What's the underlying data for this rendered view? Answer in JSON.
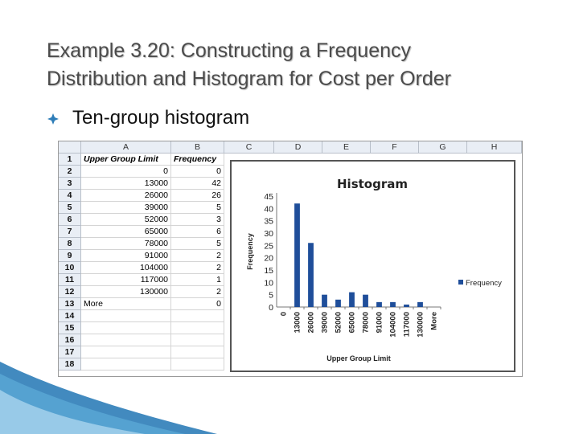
{
  "slide": {
    "title_line1": "Example 3.20: Constructing a Frequency",
    "title_line2": "Distribution and Histogram for Cost per Order",
    "bullet": "Ten-group histogram"
  },
  "sheet": {
    "column_headers": [
      "A",
      "B",
      "C",
      "D",
      "E",
      "F",
      "G",
      "H"
    ],
    "header_row": [
      "Upper Group Limit",
      "Frequency"
    ],
    "rows": [
      {
        "num": "2",
        "a": "0",
        "b": "0"
      },
      {
        "num": "3",
        "a": "13000",
        "b": "42"
      },
      {
        "num": "4",
        "a": "26000",
        "b": "26"
      },
      {
        "num": "5",
        "a": "39000",
        "b": "5"
      },
      {
        "num": "6",
        "a": "52000",
        "b": "3"
      },
      {
        "num": "7",
        "a": "65000",
        "b": "6"
      },
      {
        "num": "8",
        "a": "78000",
        "b": "5"
      },
      {
        "num": "9",
        "a": "91000",
        "b": "2"
      },
      {
        "num": "10",
        "a": "104000",
        "b": "2"
      },
      {
        "num": "11",
        "a": "117000",
        "b": "1"
      },
      {
        "num": "12",
        "a": "130000",
        "b": "2"
      },
      {
        "num": "13",
        "a": "More",
        "b": "0"
      },
      {
        "num": "14",
        "a": "",
        "b": ""
      },
      {
        "num": "15",
        "a": "",
        "b": ""
      },
      {
        "num": "16",
        "a": "",
        "b": ""
      },
      {
        "num": "17",
        "a": "",
        "b": ""
      },
      {
        "num": "18",
        "a": "",
        "b": ""
      }
    ],
    "first_row_num": "1"
  },
  "chart_data": {
    "type": "bar",
    "title": "Histogram",
    "xlabel": "Upper Group Limit",
    "ylabel": "Frequency",
    "categories": [
      "0",
      "13000",
      "26000",
      "39000",
      "52000",
      "65000",
      "78000",
      "91000",
      "104000",
      "117000",
      "130000",
      "More"
    ],
    "series": [
      {
        "name": "Frequency",
        "values": [
          0,
          42,
          26,
          5,
          3,
          6,
          5,
          2,
          2,
          1,
          2,
          0
        ]
      }
    ],
    "ylim": [
      0,
      45
    ],
    "yticks": [
      0,
      5,
      10,
      15,
      20,
      25,
      30,
      35,
      40,
      45
    ],
    "legend_position": "right",
    "grid": false,
    "bar_color": "#1f4e9a"
  },
  "colors": {
    "accent_blue": "#2e7db8",
    "title_gray": "#4b4b4b"
  }
}
